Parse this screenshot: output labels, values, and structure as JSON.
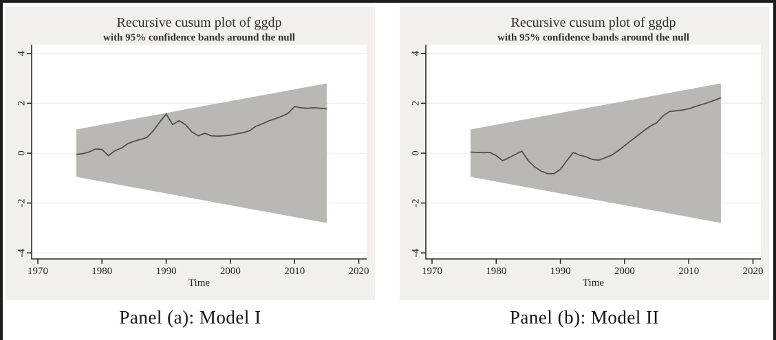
{
  "figure": {
    "captions": {
      "a": "Panel (a): Model I",
      "b": "Panel (b): Model II"
    },
    "colors": {
      "frame": "#1d1d1d",
      "panel_bg": "#f1f0ee",
      "plot_bg": "#ffffff",
      "grid": "#e8e8e5",
      "axis": "#2a2a2a",
      "band": "#b9b8b5",
      "line": "#4f4f4f"
    }
  },
  "chart_data": [
    {
      "type": "line",
      "title": "Recursive cusum plot of ggdp",
      "subtitle": "with 95% confidence bands around the null",
      "xlabel": "Time",
      "ylabel": "",
      "caption": "Panel (a): Model I",
      "grid": true,
      "legend": "none",
      "xlim": [
        1969,
        2021.3
      ],
      "ylim": [
        -4.35,
        4.35
      ],
      "x_ticks": [
        1970,
        1980,
        1990,
        2000,
        2010,
        2020
      ],
      "y_ticks": [
        -4,
        -2,
        0,
        2,
        4
      ],
      "band": {
        "label": "95% confidence bands around the null",
        "x": [
          1976,
          2015
        ],
        "upper": [
          0.95,
          2.8
        ],
        "lower": [
          -0.95,
          -2.8
        ]
      },
      "x": [
        1976,
        1977,
        1978,
        1979,
        1980,
        1981,
        1982,
        1983,
        1984,
        1985,
        1986,
        1987,
        1988,
        1989,
        1990,
        1991,
        1992,
        1993,
        1994,
        1995,
        1996,
        1997,
        1998,
        1999,
        2000,
        2001,
        2002,
        2003,
        2004,
        2005,
        2006,
        2007,
        2008,
        2009,
        2010,
        2011,
        2012,
        2013,
        2014,
        2015
      ],
      "series": [
        {
          "name": "Recursive cusum of ggdp (Model I)",
          "values": [
            -0.05,
            -0.02,
            0.05,
            0.17,
            0.15,
            -0.1,
            0.1,
            0.2,
            0.38,
            0.48,
            0.55,
            0.63,
            0.9,
            1.25,
            1.57,
            1.15,
            1.3,
            1.15,
            0.85,
            0.7,
            0.8,
            0.7,
            0.68,
            0.7,
            0.72,
            0.78,
            0.82,
            0.9,
            1.08,
            1.18,
            1.3,
            1.38,
            1.48,
            1.6,
            1.87,
            1.82,
            1.8,
            1.82,
            1.8,
            1.78
          ]
        }
      ]
    },
    {
      "type": "line",
      "title": "Recursive cusum plot of ggdp",
      "subtitle": "with 95% confidence bands around the null",
      "xlabel": "Time",
      "ylabel": "",
      "caption": "Panel (b): Model II",
      "grid": true,
      "legend": "none",
      "xlim": [
        1969,
        2021.3
      ],
      "ylim": [
        -4.35,
        4.35
      ],
      "x_ticks": [
        1970,
        1980,
        1990,
        2000,
        2010,
        2020
      ],
      "y_ticks": [
        -4,
        -2,
        0,
        2,
        4
      ],
      "band": {
        "label": "95% confidence bands around the null",
        "x": [
          1976,
          2015
        ],
        "upper": [
          0.95,
          2.8
        ],
        "lower": [
          -0.95,
          -2.8
        ]
      },
      "x": [
        1976,
        1977,
        1978,
        1979,
        1980,
        1981,
        1982,
        1983,
        1984,
        1985,
        1986,
        1987,
        1988,
        1989,
        1990,
        1991,
        1992,
        1993,
        1994,
        1995,
        1996,
        1997,
        1998,
        1999,
        2000,
        2001,
        2002,
        2003,
        2004,
        2005,
        2006,
        2007,
        2008,
        2009,
        2010,
        2011,
        2012,
        2013,
        2014,
        2015
      ],
      "series": [
        {
          "name": "Recursive cusum of ggdp (Model II)",
          "values": [
            0.04,
            0.03,
            0.02,
            0.03,
            -0.1,
            -0.3,
            -0.18,
            -0.05,
            0.08,
            -0.3,
            -0.55,
            -0.72,
            -0.82,
            -0.82,
            -0.65,
            -0.3,
            0.03,
            -0.08,
            -0.15,
            -0.25,
            -0.28,
            -0.18,
            -0.08,
            0.1,
            0.3,
            0.5,
            0.7,
            0.9,
            1.08,
            1.22,
            1.5,
            1.67,
            1.7,
            1.73,
            1.78,
            1.87,
            1.95,
            2.03,
            2.12,
            2.22
          ]
        }
      ]
    }
  ]
}
